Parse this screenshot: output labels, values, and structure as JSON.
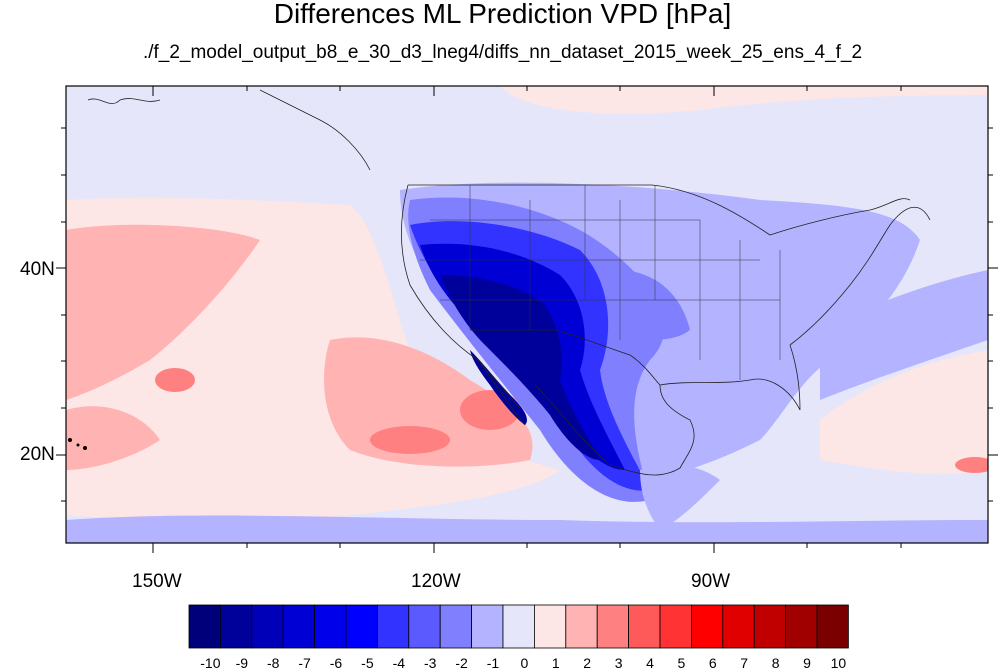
{
  "title": "Differences ML Prediction VPD [hPa]",
  "subtitle": "./f_2_model_output_b8_e_30_d3_lneg4/diffs_nn_dataset_2015_week_25_ens_4_f_2",
  "lat_ticks": [
    "40N",
    "20N"
  ],
  "lon_ticks": [
    "150W",
    "120W",
    "90W"
  ],
  "colorbar": {
    "labels": [
      "-10",
      "-9",
      "-8",
      "-7",
      "-6",
      "-5",
      "-4",
      "-3",
      "-2",
      "-1",
      "0",
      "1",
      "2",
      "3",
      "4",
      "5",
      "6",
      "7",
      "8",
      "9",
      "10"
    ],
    "colors": [
      "#00007a",
      "#00009b",
      "#0000b8",
      "#0000d4",
      "#0000ea",
      "#0000ff",
      "#3333ff",
      "#5a5aff",
      "#8080ff",
      "#b3b3ff",
      "#e6e6fa",
      "#fde6e6",
      "#ffb3b3",
      "#ff8080",
      "#ff5a5a",
      "#ff3333",
      "#ff0000",
      "#e00000",
      "#c00000",
      "#a00000",
      "#7a0000"
    ]
  },
  "map_colors": {
    "background": "#e6e6fa",
    "light_red": "#fde6e6",
    "medium_red": "#ffb3b3",
    "strong_red": "#ff8080",
    "light_blue": "#b3b3ff",
    "medium_blue": "#8080ff",
    "strong_blue": "#3333ff",
    "deep_blue": "#0000d4",
    "deepest_blue": "#00009b"
  }
}
